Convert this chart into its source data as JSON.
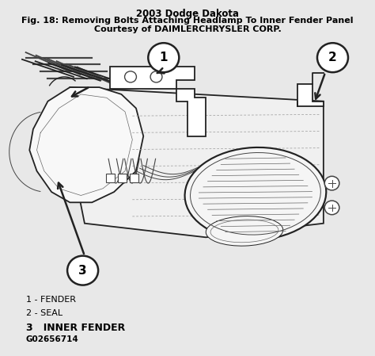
{
  "title_line1": "2003 Dodge Dakota",
  "title_line2": "Fig. 18: Removing Bolts Attaching Headlamp To Inner Fender Panel",
  "title_line3": "Courtesy of DAIMLERCHRYSLER CORP.",
  "legend_1": "1 - FENDER",
  "legend_2": "2 - SEAL",
  "legend_3": "3   INNER FENDER",
  "part_id": "G02656714",
  "bg_color": "#e8e8e8",
  "line_color": "#222222",
  "title_fontsize": 8.5,
  "legend_fontsize": 8,
  "c1x": 0.435,
  "c1y": 0.845,
  "c2x": 0.895,
  "c2y": 0.845,
  "c3x": 0.215,
  "c3y": 0.235,
  "circle_r": 0.042
}
